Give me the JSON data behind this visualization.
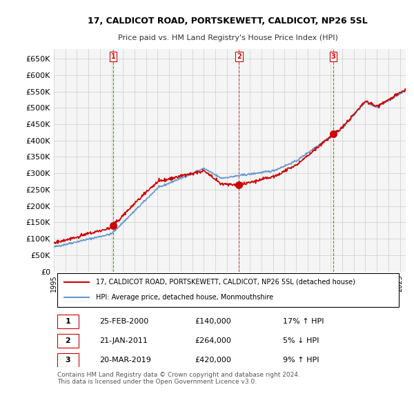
{
  "title": "17, CALDICOT ROAD, PORTSKEWETT, CALDICOT, NP26 5SL",
  "subtitle": "Price paid vs. HM Land Registry's House Price Index (HPI)",
  "ylabel_ticks": [
    "£0",
    "£50K",
    "£100K",
    "£150K",
    "£200K",
    "£250K",
    "£300K",
    "£350K",
    "£400K",
    "£450K",
    "£500K",
    "£550K",
    "£600K",
    "£650K"
  ],
  "ytick_vals": [
    0,
    50000,
    100000,
    150000,
    200000,
    250000,
    300000,
    350000,
    400000,
    450000,
    500000,
    550000,
    600000,
    650000
  ],
  "ylim": [
    0,
    680000
  ],
  "xlim_start": 1995.0,
  "xlim_end": 2025.5,
  "sale_line_color": "#cc0000",
  "hpi_line_color": "#6699cc",
  "sale_marker_color": "#cc0000",
  "vline_color": "#cc0000",
  "grid_color": "#cccccc",
  "background_color": "#ffffff",
  "plot_bg_color": "#f5f5f5",
  "sales": [
    {
      "year": 2000.15,
      "price": 140000,
      "label": "1"
    },
    {
      "year": 2011.05,
      "price": 264000,
      "label": "2"
    },
    {
      "year": 2019.22,
      "price": 420000,
      "label": "3"
    }
  ],
  "legend_line1": "17, CALDICOT ROAD, PORTSKEWETT, CALDICOT, NP26 5SL (detached house)",
  "legend_line2": "HPI: Average price, detached house, Monmouthshire",
  "table_rows": [
    {
      "num": "1",
      "date": "25-FEB-2000",
      "price": "£140,000",
      "hpi": "17% ↑ HPI"
    },
    {
      "num": "2",
      "date": "21-JAN-2011",
      "price": "£264,000",
      "hpi": "5% ↓ HPI"
    },
    {
      "num": "3",
      "date": "20-MAR-2019",
      "price": "£420,000",
      "hpi": "9% ↑ HPI"
    }
  ],
  "footer": "Contains HM Land Registry data © Crown copyright and database right 2024.\nThis data is licensed under the Open Government Licence v3.0."
}
